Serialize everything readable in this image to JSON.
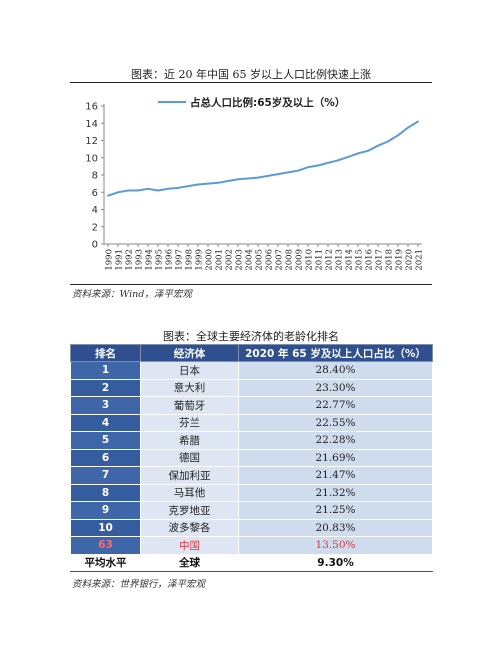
{
  "chart1": {
    "caption": "图表：近 20 年中国 65 岁以上人口比例快速上涨",
    "source": "资料来源：Wind，泽平宏观"
  },
  "chart_data": {
    "type": "line",
    "title": "",
    "legend": "占总人口比例:65岁及以上（%）",
    "legend_position": "top",
    "x": [
      "1990",
      "1991",
      "1992",
      "1993",
      "1994",
      "1995",
      "1996",
      "1997",
      "1998",
      "1999",
      "2000",
      "2001",
      "2002",
      "2003",
      "2004",
      "2005",
      "2006",
      "2007",
      "2008",
      "2009",
      "2010",
      "2011",
      "2012",
      "2013",
      "2014",
      "2015",
      "2016",
      "2017",
      "2018",
      "2019",
      "2020",
      "2021"
    ],
    "series": [
      {
        "name": "占总人口比例:65岁及以上（%）",
        "values": [
          5.6,
          6.0,
          6.2,
          6.2,
          6.4,
          6.2,
          6.4,
          6.5,
          6.7,
          6.9,
          7.0,
          7.1,
          7.3,
          7.5,
          7.6,
          7.7,
          7.9,
          8.1,
          8.3,
          8.5,
          8.9,
          9.1,
          9.4,
          9.7,
          10.1,
          10.5,
          10.8,
          11.4,
          11.9,
          12.6,
          13.5,
          14.2
        ],
        "color": "#5b9bd5"
      }
    ],
    "yticks": [
      0,
      2,
      4,
      6,
      8,
      10,
      12,
      14,
      16
    ],
    "ylim": [
      0,
      16
    ],
    "grid": false
  },
  "table1": {
    "caption": "图表：全球主要经济体的老龄化排名",
    "headers": [
      "排名",
      "经济体",
      "2020 年 65 岁及以上人口占比（%）"
    ],
    "rows": [
      {
        "rank": "1",
        "name": "日本",
        "value": "28.40%"
      },
      {
        "rank": "2",
        "name": "意大利",
        "value": "23.30%"
      },
      {
        "rank": "3",
        "name": "葡萄牙",
        "value": "22.77%"
      },
      {
        "rank": "4",
        "name": "芬兰",
        "value": "22.55%"
      },
      {
        "rank": "5",
        "name": "希腊",
        "value": "22.28%"
      },
      {
        "rank": "6",
        "name": "德国",
        "value": "21.69%"
      },
      {
        "rank": "7",
        "name": "保加利亚",
        "value": "21.47%"
      },
      {
        "rank": "8",
        "name": "马耳他",
        "value": "21.32%"
      },
      {
        "rank": "9",
        "name": "克罗地亚",
        "value": "21.25%"
      },
      {
        "rank": "10",
        "name": "波多黎各",
        "value": "20.83%"
      },
      {
        "rank": "63",
        "name": "中国",
        "value": "13.50%"
      },
      {
        "rank": "平均水平",
        "name": "全球",
        "value": "9.30%"
      }
    ],
    "source": "资料来源：世界银行，泽平宏观",
    "header_color": "#2f4f8f",
    "highlight_color": "#e0323b"
  }
}
